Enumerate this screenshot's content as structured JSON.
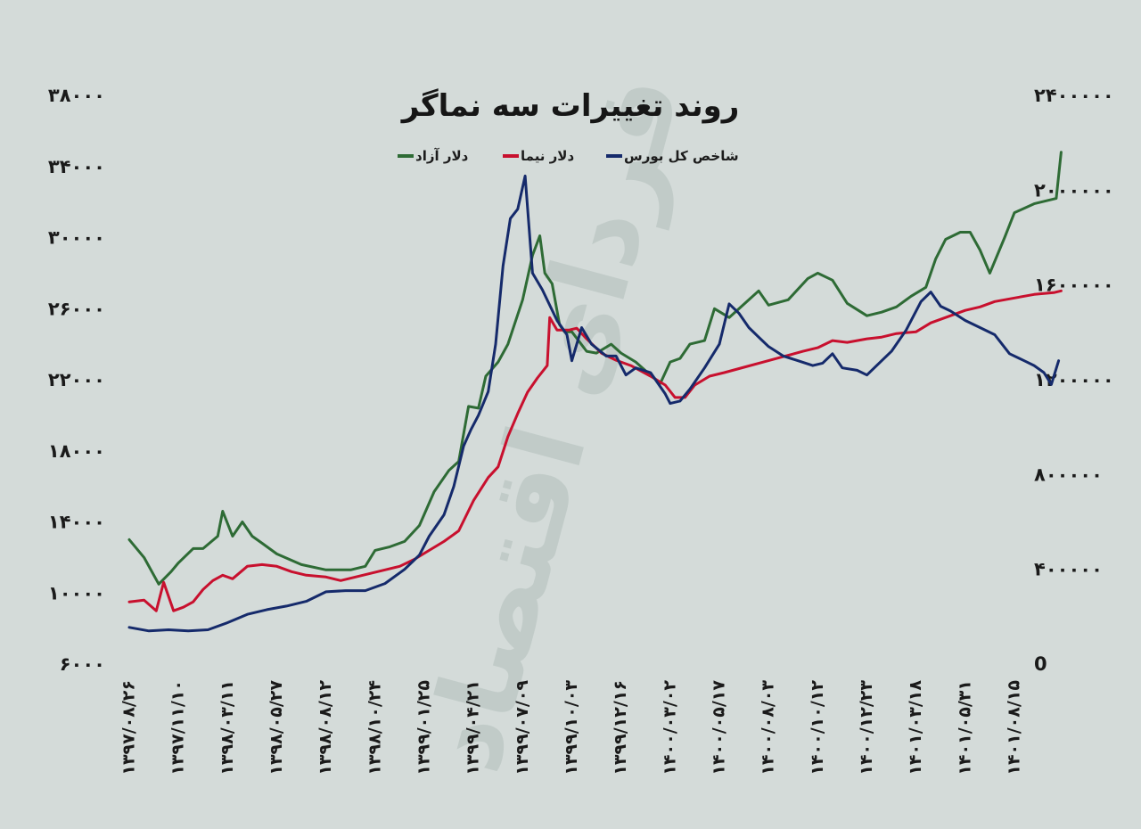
{
  "chart_data": {
    "type": "line",
    "title": "روند تغییرات سه نماگر",
    "watermark": "فردای اقتصاد",
    "y_left": {
      "ticks": [
        "۶۰۰۰",
        "۱۰۰۰۰",
        "۱۴۰۰۰",
        "۱۸۰۰۰",
        "۲۲۰۰۰",
        "۲۶۰۰۰",
        "۳۰۰۰۰",
        "۳۴۰۰۰",
        "۳۸۰۰۰"
      ],
      "range": [
        6000,
        38000
      ]
    },
    "y_right": {
      "ticks": [
        "0",
        "۴۰۰۰۰۰",
        "۸۰۰۰۰۰",
        "۱۲۰۰۰۰۰",
        "۱۶۰۰۰۰۰",
        "۲۰۰۰۰۰۰",
        "۲۴۰۰۰۰۰"
      ],
      "range": [
        0,
        2400000
      ]
    },
    "x_labels": [
      "۱۳۹۷/۰۸/۲۶",
      "۱۳۹۷/۱۱/۱۰",
      "۱۳۹۸/۰۳/۱۱",
      "۱۳۹۸/۰۵/۲۷",
      "۱۳۹۸/۰۸/۱۲",
      "۱۳۹۸/۱۰/۲۴",
      "۱۳۹۹/۰۱/۲۵",
      "۱۳۹۹/۰۴/۲۱",
      "۱۳۹۹/۰۷/۰۹",
      "۱۳۹۹/۱۰/۰۳",
      "۱۳۹۹/۱۲/۱۶",
      "۱۴۰۰/۰۳/۰۲",
      "۱۴۰۰/۰۵/۱۷",
      "۱۴۰۰/۰۸/۰۳",
      "۱۴۰۰/۱۰/۱۲",
      "۱۴۰۰/۱۲/۲۳",
      "۱۴۰۱/۰۳/۱۸",
      "۱۴۰۱/۰۵/۳۱",
      "۱۴۰۱/۰۸/۱۵"
    ],
    "series": [
      {
        "name": "دلار آزاد",
        "axis": "left",
        "color": "#2e6b35",
        "values": [
          [
            0,
            13000
          ],
          [
            0.3,
            12000
          ],
          [
            0.6,
            10500
          ],
          [
            0.85,
            11200
          ],
          [
            1.0,
            11700
          ],
          [
            1.3,
            12500
          ],
          [
            1.5,
            12500
          ],
          [
            1.8,
            13200
          ],
          [
            1.9,
            14600
          ],
          [
            2.1,
            13200
          ],
          [
            2.3,
            14000
          ],
          [
            2.5,
            13200
          ],
          [
            2.7,
            12800
          ],
          [
            3.0,
            12200
          ],
          [
            3.5,
            11600
          ],
          [
            4.0,
            11300
          ],
          [
            4.5,
            11300
          ],
          [
            4.8,
            11500
          ],
          [
            5.0,
            12400
          ],
          [
            5.3,
            12600
          ],
          [
            5.6,
            12900
          ],
          [
            5.9,
            13800
          ],
          [
            6.2,
            15700
          ],
          [
            6.5,
            16900
          ],
          [
            6.7,
            17400
          ],
          [
            6.9,
            20500
          ],
          [
            7.1,
            20400
          ],
          [
            7.25,
            22200
          ],
          [
            7.5,
            23000
          ],
          [
            7.7,
            24000
          ],
          [
            8.0,
            26500
          ],
          [
            8.2,
            29000
          ],
          [
            8.35,
            30100
          ],
          [
            8.45,
            28000
          ],
          [
            8.6,
            27400
          ],
          [
            8.75,
            25100
          ],
          [
            8.85,
            24700
          ],
          [
            9.0,
            24700
          ],
          [
            9.3,
            23600
          ],
          [
            9.5,
            23500
          ],
          [
            9.8,
            24000
          ],
          [
            10.0,
            23500
          ],
          [
            10.3,
            23000
          ],
          [
            10.5,
            22500
          ],
          [
            10.8,
            21800
          ],
          [
            11.0,
            23000
          ],
          [
            11.2,
            23200
          ],
          [
            11.4,
            24000
          ],
          [
            11.7,
            24200
          ],
          [
            11.9,
            26000
          ],
          [
            12.2,
            25500
          ],
          [
            12.6,
            26500
          ],
          [
            12.8,
            27000
          ],
          [
            13.0,
            26200
          ],
          [
            13.4,
            26500
          ],
          [
            13.8,
            27700
          ],
          [
            14.0,
            28000
          ],
          [
            14.3,
            27600
          ],
          [
            14.6,
            26300
          ],
          [
            15.0,
            25600
          ],
          [
            15.3,
            25800
          ],
          [
            15.6,
            26100
          ],
          [
            15.9,
            26700
          ],
          [
            16.2,
            27200
          ],
          [
            16.4,
            28800
          ],
          [
            16.6,
            29900
          ],
          [
            16.9,
            30300
          ],
          [
            17.1,
            30300
          ],
          [
            17.3,
            29300
          ],
          [
            17.5,
            28000
          ],
          [
            17.8,
            30000
          ],
          [
            18.0,
            31400
          ],
          [
            18.4,
            31900
          ],
          [
            18.85,
            32200
          ],
          [
            18.95,
            34800
          ]
        ]
      },
      {
        "name": "دلار نیما",
        "axis": "left",
        "color": "#c8102e",
        "values": [
          [
            0,
            9500
          ],
          [
            0.3,
            9600
          ],
          [
            0.55,
            9000
          ],
          [
            0.7,
            10600
          ],
          [
            0.9,
            9000
          ],
          [
            1.1,
            9200
          ],
          [
            1.3,
            9500
          ],
          [
            1.5,
            10200
          ],
          [
            1.7,
            10700
          ],
          [
            1.9,
            11000
          ],
          [
            2.1,
            10800
          ],
          [
            2.4,
            11500
          ],
          [
            2.7,
            11600
          ],
          [
            3.0,
            11500
          ],
          [
            3.3,
            11200
          ],
          [
            3.6,
            11000
          ],
          [
            4.0,
            10900
          ],
          [
            4.3,
            10700
          ],
          [
            4.6,
            10900
          ],
          [
            4.9,
            11100
          ],
          [
            5.2,
            11300
          ],
          [
            5.5,
            11500
          ],
          [
            5.8,
            11900
          ],
          [
            6.1,
            12400
          ],
          [
            6.4,
            12900
          ],
          [
            6.7,
            13500
          ],
          [
            7.0,
            15200
          ],
          [
            7.3,
            16500
          ],
          [
            7.5,
            17100
          ],
          [
            7.7,
            18800
          ],
          [
            7.9,
            20100
          ],
          [
            8.1,
            21300
          ],
          [
            8.3,
            22100
          ],
          [
            8.5,
            22800
          ],
          [
            8.55,
            25500
          ],
          [
            8.7,
            24800
          ],
          [
            8.95,
            24800
          ],
          [
            9.1,
            24900
          ],
          [
            9.3,
            24300
          ],
          [
            9.6,
            23500
          ],
          [
            9.9,
            23100
          ],
          [
            10.2,
            22800
          ],
          [
            10.6,
            22200
          ],
          [
            10.9,
            21700
          ],
          [
            11.1,
            21000
          ],
          [
            11.3,
            21000
          ],
          [
            11.5,
            21700
          ],
          [
            11.8,
            22200
          ],
          [
            12.1,
            22400
          ],
          [
            12.5,
            22700
          ],
          [
            12.9,
            23000
          ],
          [
            13.3,
            23300
          ],
          [
            13.7,
            23600
          ],
          [
            14.0,
            23800
          ],
          [
            14.3,
            24200
          ],
          [
            14.6,
            24100
          ],
          [
            15.0,
            24300
          ],
          [
            15.3,
            24400
          ],
          [
            15.6,
            24600
          ],
          [
            16.0,
            24700
          ],
          [
            16.3,
            25200
          ],
          [
            16.7,
            25600
          ],
          [
            17.0,
            25900
          ],
          [
            17.3,
            26100
          ],
          [
            17.6,
            26400
          ],
          [
            18.0,
            26600
          ],
          [
            18.4,
            26800
          ],
          [
            18.8,
            26900
          ],
          [
            18.95,
            27000
          ]
        ]
      },
      {
        "name": "شاخص کل بورس",
        "axis": "right",
        "color": "#152a6b",
        "values": [
          [
            0,
            155000
          ],
          [
            0.4,
            140000
          ],
          [
            0.8,
            145000
          ],
          [
            1.2,
            140000
          ],
          [
            1.6,
            145000
          ],
          [
            2.0,
            175000
          ],
          [
            2.4,
            210000
          ],
          [
            2.8,
            230000
          ],
          [
            3.2,
            245000
          ],
          [
            3.6,
            265000
          ],
          [
            4.0,
            305000
          ],
          [
            4.4,
            310000
          ],
          [
            4.8,
            310000
          ],
          [
            5.2,
            340000
          ],
          [
            5.6,
            400000
          ],
          [
            5.9,
            460000
          ],
          [
            6.1,
            540000
          ],
          [
            6.4,
            630000
          ],
          [
            6.6,
            750000
          ],
          [
            6.8,
            920000
          ],
          [
            6.95,
            990000
          ],
          [
            7.1,
            1050000
          ],
          [
            7.3,
            1150000
          ],
          [
            7.45,
            1350000
          ],
          [
            7.6,
            1680000
          ],
          [
            7.75,
            1880000
          ],
          [
            7.9,
            1920000
          ],
          [
            8.05,
            2060000
          ],
          [
            8.2,
            1650000
          ],
          [
            8.4,
            1580000
          ],
          [
            8.7,
            1450000
          ],
          [
            8.9,
            1390000
          ],
          [
            9.0,
            1280000
          ],
          [
            9.2,
            1420000
          ],
          [
            9.4,
            1350000
          ],
          [
            9.7,
            1300000
          ],
          [
            9.9,
            1300000
          ],
          [
            10.1,
            1220000
          ],
          [
            10.3,
            1250000
          ],
          [
            10.6,
            1230000
          ],
          [
            10.9,
            1140000
          ],
          [
            11.0,
            1100000
          ],
          [
            11.2,
            1110000
          ],
          [
            11.4,
            1160000
          ],
          [
            11.7,
            1250000
          ],
          [
            12.0,
            1350000
          ],
          [
            12.2,
            1520000
          ],
          [
            12.4,
            1480000
          ],
          [
            12.6,
            1420000
          ],
          [
            12.8,
            1380000
          ],
          [
            13.0,
            1340000
          ],
          [
            13.3,
            1300000
          ],
          [
            13.6,
            1280000
          ],
          [
            13.9,
            1260000
          ],
          [
            14.1,
            1270000
          ],
          [
            14.3,
            1310000
          ],
          [
            14.5,
            1250000
          ],
          [
            14.8,
            1240000
          ],
          [
            15.0,
            1220000
          ],
          [
            15.2,
            1260000
          ],
          [
            15.5,
            1320000
          ],
          [
            15.8,
            1410000
          ],
          [
            16.1,
            1530000
          ],
          [
            16.3,
            1570000
          ],
          [
            16.5,
            1510000
          ],
          [
            16.7,
            1490000
          ],
          [
            17.0,
            1450000
          ],
          [
            17.3,
            1420000
          ],
          [
            17.6,
            1390000
          ],
          [
            17.9,
            1310000
          ],
          [
            18.2,
            1280000
          ],
          [
            18.4,
            1260000
          ],
          [
            18.6,
            1230000
          ],
          [
            18.75,
            1180000
          ],
          [
            18.9,
            1280000
          ]
        ]
      }
    ]
  }
}
